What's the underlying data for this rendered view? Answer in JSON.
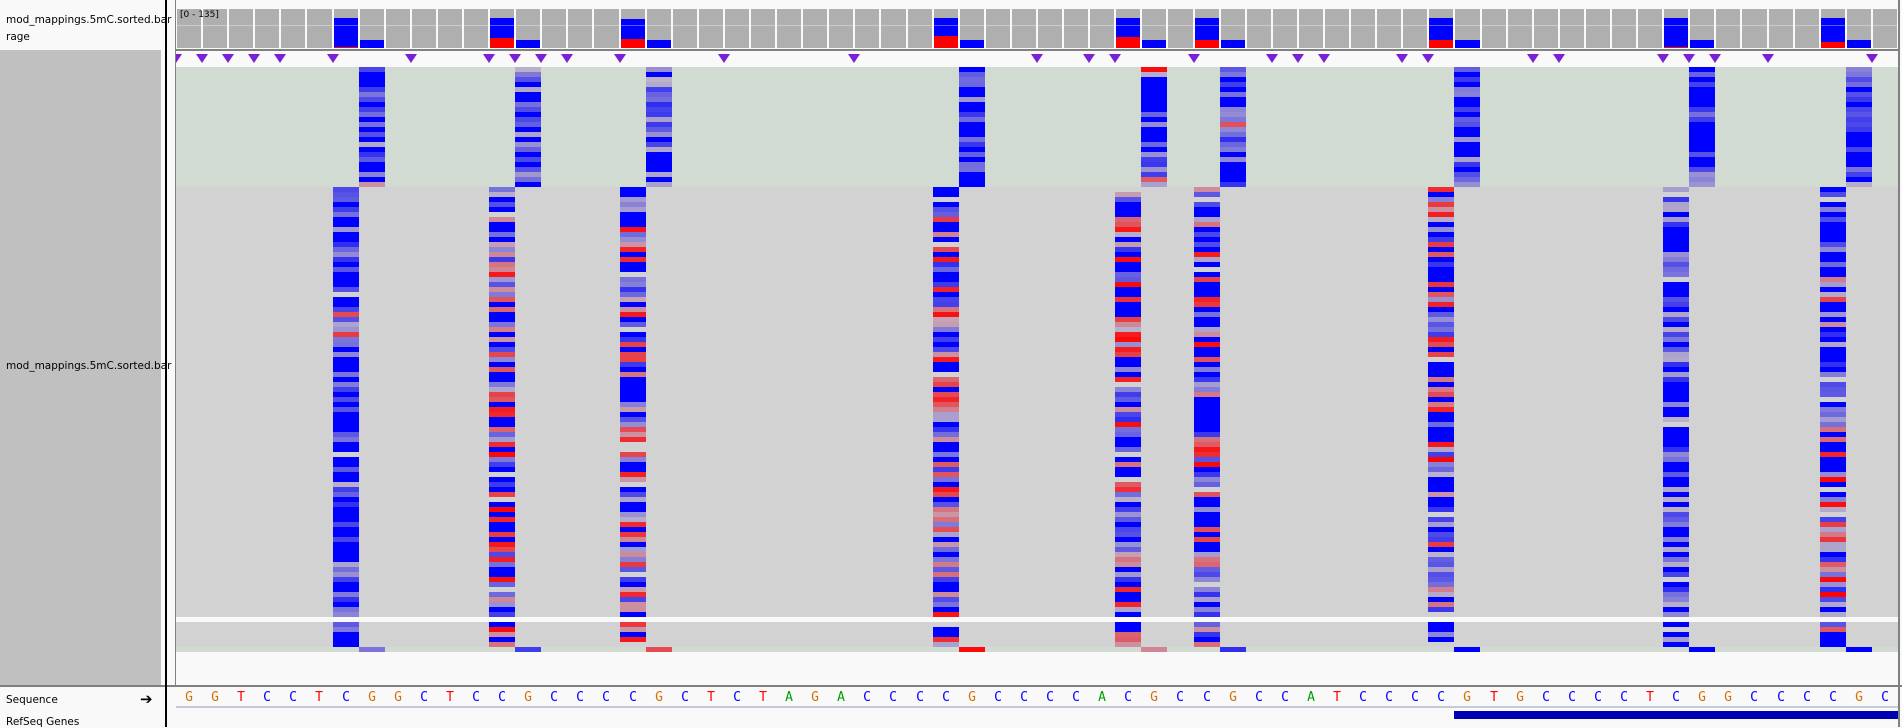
{
  "tracks": {
    "coverage": {
      "label_line1": "mod_mappings.5mC.sorted.bar",
      "label_line2": "rage",
      "range": "[0 - 135]",
      "max": 135
    },
    "alignments": {
      "label": "mod_mappings.5mC.sorted.bar"
    },
    "sequence": {
      "label": "Sequence",
      "strand_icon": "right-arrow-icon"
    },
    "refseq": {
      "label": "RefSeq Genes",
      "gene_start_base": 49
    }
  },
  "sequence": "GGTCCTCGGCTCCGCCCCGCTCTAGACCCCGCCCCACGCCGCCATCCCCGTGCCCCTCGGCCCCGC",
  "base_colors": {
    "A": "#00a000",
    "C": "#0000ff",
    "G": "#d17105",
    "T": "#ff0000"
  },
  "colors": {
    "unmethylated": "#0000ff",
    "methylated": "#ff0000",
    "coverage": "#afafaf",
    "insertion_marker": "#7a1fd6",
    "reverse_band": "#d1dbd1",
    "forward_band": "#d2d2d2",
    "gene": "#0000b2"
  },
  "insertion_marker_positions": [
    0,
    1,
    2,
    3,
    4,
    6,
    9,
    12,
    13,
    14,
    15,
    17,
    21,
    26,
    33,
    35,
    36,
    39,
    42,
    43,
    44,
    47,
    48,
    52,
    53,
    57,
    58,
    59,
    61,
    65
  ],
  "cpg_sites": [
    {
      "c_index": 6,
      "c_coverage": 104,
      "c_methylated_fraction": 0.03,
      "g_coverage": 28
    },
    {
      "c_index": 12,
      "c_coverage": 104,
      "c_methylated_fraction": 0.33,
      "g_coverage": 28
    },
    {
      "c_index": 17,
      "c_coverage": 100,
      "c_methylated_fraction": 0.3,
      "g_coverage": 28
    },
    {
      "c_index": 29,
      "c_coverage": 104,
      "c_methylated_fraction": 0.4,
      "g_coverage": 28
    },
    {
      "c_index": 36,
      "c_coverage": 104,
      "c_methylated_fraction": 0.35,
      "g_coverage": 28
    },
    {
      "c_index": 39,
      "c_coverage": 104,
      "c_methylated_fraction": 0.25,
      "g_coverage": 28
    },
    {
      "c_index": 48,
      "c_coverage": 104,
      "c_methylated_fraction": 0.25,
      "g_coverage": 28
    },
    {
      "c_index": 57,
      "c_coverage": 104,
      "c_methylated_fraction": 0.03,
      "g_coverage": 28
    },
    {
      "c_index": 63,
      "c_coverage": 104,
      "c_methylated_fraction": 0.2,
      "g_coverage": 28
    }
  ]
}
